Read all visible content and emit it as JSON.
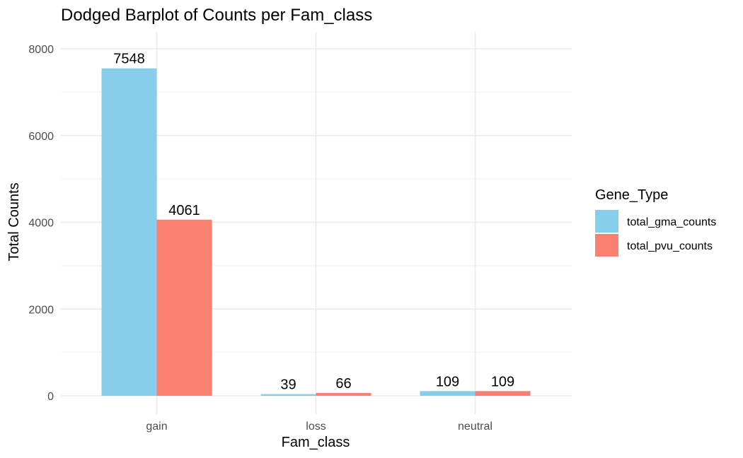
{
  "chart_data": {
    "type": "bar",
    "title": "Dodged Barplot of Counts per Fam_class",
    "xlabel": "Fam_class",
    "ylabel": "Total Counts",
    "categories": [
      "gain",
      "loss",
      "neutral"
    ],
    "series": [
      {
        "name": "total_gma_counts",
        "values": [
          7548,
          39,
          109
        ],
        "color": "#87CEEB"
      },
      {
        "name": "total_pvu_counts",
        "values": [
          4061,
          66,
          109
        ],
        "color": "#FA8072"
      }
    ],
    "ylim": [
      0,
      8300
    ],
    "yticks": [
      0,
      2000,
      4000,
      6000,
      8000
    ],
    "grid": true,
    "legend": {
      "title": "Gene_Type",
      "position": "right"
    }
  }
}
